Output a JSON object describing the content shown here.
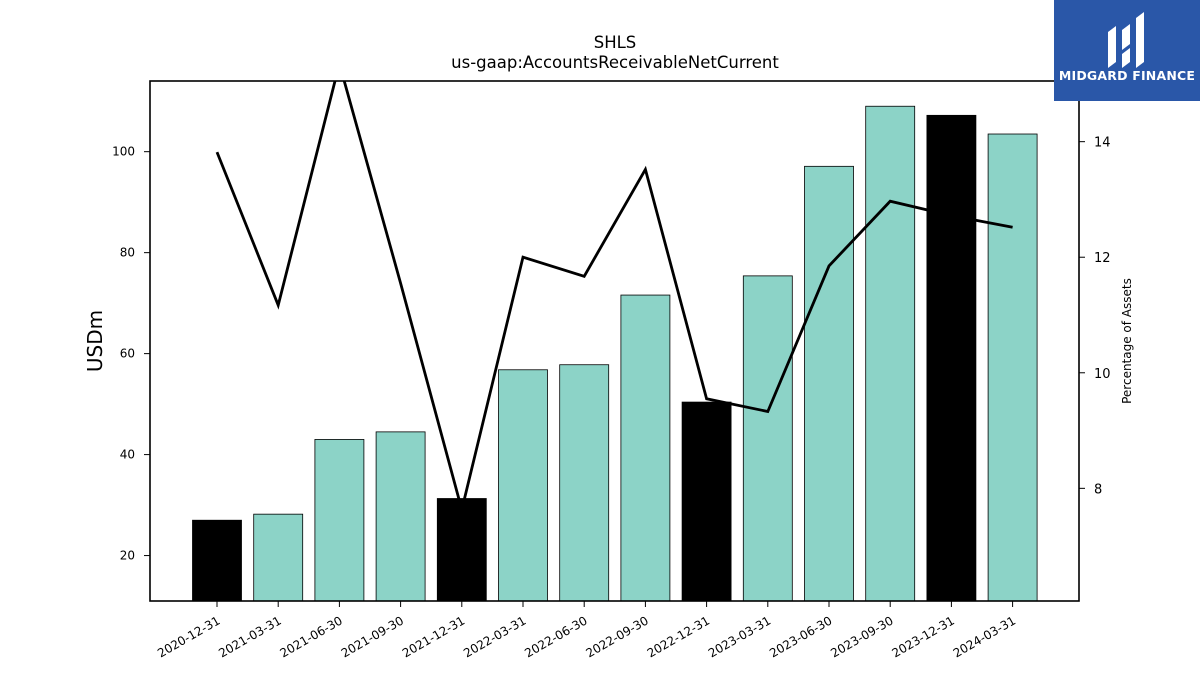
{
  "chart_data": {
    "type": "bar",
    "title": "SHLS",
    "subtitle": "us-gaap:AccountsReceivableNetCurrent",
    "ylabel": "USDm",
    "y2label": "Percentage of Assets",
    "categories": [
      "2020-12-31",
      "2021-03-31",
      "2021-06-30",
      "2021-09-30",
      "2021-12-31",
      "2022-03-31",
      "2022-06-30",
      "2022-09-30",
      "2022-12-31",
      "2023-03-31",
      "2023-06-30",
      "2023-09-30",
      "2023-12-31",
      "2024-03-31"
    ],
    "series": [
      {
        "values": [
          27.0,
          28.2,
          43.0,
          44.5,
          31.3,
          56.8,
          57.8,
          71.6,
          50.4,
          75.4,
          97.1,
          109.0,
          107.2,
          103.5
        ],
        "highlight": [
          true,
          false,
          false,
          false,
          true,
          false,
          false,
          false,
          true,
          false,
          false,
          false,
          true,
          false
        ],
        "colors": {
          "normal": "#8cd3c7",
          "highlight": "#000000"
        }
      },
      {
        "axis": "right",
        "type": "line",
        "values": [
          13.82,
          11.17,
          15.35,
          11.55,
          7.63,
          12.0,
          11.67,
          13.52,
          9.55,
          9.33,
          11.85,
          12.97,
          12.72,
          12.52
        ],
        "color": "#000000"
      }
    ],
    "ylim": [
      11,
      114
    ],
    "y2lim": [
      6.05,
      15.05
    ],
    "yticks": [
      20,
      40,
      60,
      80,
      100
    ],
    "y2ticks": [
      8,
      10,
      12,
      14
    ]
  },
  "logo": {
    "text": "MIDGARD FINANCE"
  }
}
